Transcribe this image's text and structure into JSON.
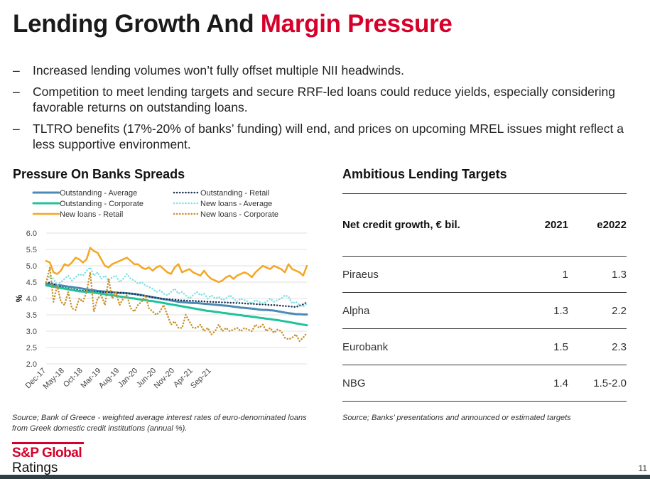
{
  "title": {
    "part1": "Lending Growth And",
    "part2": "Margin Pressure"
  },
  "bullets": [
    {
      "marker": "–",
      "text": "Increased lending volumes won’t fully offset multiple NII headwinds."
    },
    {
      "marker": "–",
      "text": "Competition to meet lending targets and secure RRF-led loans could reduce yields, especially considering favorable returns on outstanding loans."
    },
    {
      "marker": "–",
      "text": "TLTRO benefits (17%-20% of banks’ funding) will end, and prices on upcoming MREL issues might reflect a less supportive environment."
    }
  ],
  "left_section": {
    "title": "Pressure On Banks Spreads",
    "source": "Source; Bank of Greece - weighted average interest rates of euro-denominated loans from Greek domestic credit institutions (annual %)."
  },
  "right_section": {
    "title": "Ambitious Lending Targets",
    "header": [
      "Net credit growth, € bil.",
      "2021",
      "e2022"
    ],
    "rows": [
      {
        "bank": "Piraeus",
        "v2021": "1",
        "v2022": "1.3"
      },
      {
        "bank": "Alpha",
        "v2021": "1.3",
        "v2022": "2.2"
      },
      {
        "bank": "Eurobank",
        "v2021": "1.5",
        "v2022": "2.3"
      },
      {
        "bank": "NBG",
        "v2021": "1.4",
        "v2022": "1.5-2.0"
      }
    ],
    "source": "Source; Banks’ presentations and announced or estimated targets"
  },
  "logo": {
    "top": "S&P Global",
    "bottom": "Ratings"
  },
  "page_number": "11",
  "colors": {
    "accent": "#d6002a",
    "footer": "#2f3e45"
  },
  "chart_data": {
    "type": "line",
    "title": "Pressure On Banks Spreads",
    "xlabel": "",
    "ylabel": "%",
    "ylim": [
      2.0,
      6.0
    ],
    "yticks": [
      "6.0",
      "5.5",
      "5.0",
      "4.5",
      "4.0",
      "3.5",
      "3.0",
      "2.5",
      "2.0"
    ],
    "grid": true,
    "legend_position": "top",
    "x_tick_labels": [
      "Dec-17",
      "May-18",
      "Oct-18",
      "Mar-19",
      "Aug-19",
      "Jan-20",
      "Jun-20",
      "Nov-20",
      "Apr-21",
      "Sep-21"
    ],
    "series": [
      {
        "name": "Outstanding - Average",
        "color": "#4a8ab5",
        "style": "solid",
        "width": 3,
        "values": [
          4.45,
          4.44,
          4.42,
          4.41,
          4.4,
          4.38,
          4.36,
          4.35,
          4.33,
          4.32,
          4.3,
          4.28,
          4.26,
          4.25,
          4.23,
          4.22,
          4.21,
          4.2,
          4.19,
          4.18,
          4.17,
          4.17,
          4.16,
          4.15,
          4.14,
          4.12,
          4.1,
          4.08,
          4.06,
          4.04,
          4.02,
          4.0,
          3.98,
          3.96,
          3.94,
          3.92,
          3.9,
          3.89,
          3.88,
          3.87,
          3.86,
          3.86,
          3.85,
          3.84,
          3.83,
          3.82,
          3.81,
          3.8,
          3.79,
          3.78,
          3.77,
          3.75,
          3.74,
          3.72,
          3.71,
          3.7,
          3.69,
          3.68,
          3.66,
          3.65,
          3.65,
          3.64,
          3.63,
          3.61,
          3.59,
          3.57,
          3.55,
          3.54,
          3.52,
          3.52,
          3.51,
          3.51
        ]
      },
      {
        "name": "Outstanding - Retail",
        "color": "#1c2f4f",
        "style": "dotted",
        "width": 2.5,
        "values": [
          4.5,
          4.48,
          4.45,
          4.4,
          4.35,
          4.32,
          4.3,
          4.28,
          4.27,
          4.25,
          4.24,
          4.23,
          4.22,
          4.21,
          4.2,
          4.2,
          4.19,
          4.19,
          4.19,
          4.18,
          4.18,
          4.17,
          4.16,
          4.15,
          4.14,
          4.12,
          4.1,
          4.08,
          4.06,
          4.04,
          4.02,
          4.0,
          3.99,
          3.98,
          3.97,
          3.96,
          3.95,
          3.94,
          3.94,
          3.93,
          3.93,
          3.92,
          3.92,
          3.91,
          3.9,
          3.9,
          3.89,
          3.89,
          3.88,
          3.88,
          3.87,
          3.87,
          3.86,
          3.86,
          3.85,
          3.84,
          3.84,
          3.83,
          3.82,
          3.82,
          3.81,
          3.8,
          3.8,
          3.79,
          3.78,
          3.77,
          3.76,
          3.75,
          3.74,
          3.78,
          3.82,
          3.88
        ]
      },
      {
        "name": "Outstanding - Corporate",
        "color": "#1fc39a",
        "style": "solid",
        "width": 3,
        "values": [
          4.4,
          4.38,
          4.36,
          4.34,
          4.32,
          4.3,
          4.28,
          4.26,
          4.24,
          4.22,
          4.21,
          4.2,
          4.19,
          4.18,
          4.16,
          4.15,
          4.13,
          4.11,
          4.1,
          4.08,
          4.06,
          4.05,
          4.03,
          4.01,
          4.0,
          3.98,
          3.96,
          3.95,
          3.93,
          3.92,
          3.9,
          3.88,
          3.86,
          3.84,
          3.82,
          3.8,
          3.78,
          3.76,
          3.74,
          3.72,
          3.7,
          3.68,
          3.66,
          3.64,
          3.62,
          3.61,
          3.59,
          3.58,
          3.56,
          3.55,
          3.53,
          3.52,
          3.5,
          3.49,
          3.47,
          3.46,
          3.44,
          3.43,
          3.41,
          3.4,
          3.38,
          3.37,
          3.35,
          3.34,
          3.32,
          3.3,
          3.28,
          3.26,
          3.24,
          3.22,
          3.2,
          3.18
        ]
      },
      {
        "name": "New loans - Average",
        "color": "#7fe0e6",
        "style": "dotted",
        "width": 2.5,
        "values": [
          4.5,
          4.7,
          4.6,
          4.4,
          4.5,
          4.6,
          4.7,
          4.55,
          4.65,
          4.75,
          4.7,
          4.85,
          4.95,
          4.7,
          4.8,
          4.6,
          4.7,
          4.55,
          4.65,
          4.7,
          4.5,
          4.6,
          4.75,
          4.6,
          4.55,
          4.45,
          4.5,
          4.4,
          4.35,
          4.3,
          4.2,
          4.25,
          4.15,
          4.1,
          4.2,
          4.3,
          4.15,
          4.2,
          4.1,
          4.0,
          4.1,
          4.2,
          4.1,
          4.15,
          4.0,
          4.1,
          4.0,
          4.05,
          3.95,
          4.0,
          4.1,
          4.0,
          3.9,
          4.0,
          3.95,
          3.9,
          3.85,
          3.95,
          3.9,
          3.85,
          3.9,
          4.0,
          3.9,
          3.95,
          4.0,
          4.1,
          4.05,
          3.85,
          3.9,
          3.8,
          3.75,
          3.85
        ]
      },
      {
        "name": "New loans - Retail",
        "color": "#f5a623",
        "style": "solid",
        "width": 2.5,
        "values": [
          5.15,
          5.1,
          4.8,
          4.75,
          4.85,
          5.05,
          5.0,
          5.1,
          5.25,
          5.2,
          5.1,
          5.2,
          5.55,
          5.45,
          5.4,
          5.2,
          5.0,
          4.95,
          5.05,
          5.1,
          5.15,
          5.2,
          5.25,
          5.15,
          5.05,
          5.05,
          4.95,
          4.9,
          4.95,
          4.85,
          4.95,
          5.0,
          4.9,
          4.8,
          4.75,
          4.95,
          5.05,
          4.8,
          4.85,
          4.9,
          4.8,
          4.75,
          4.7,
          4.85,
          4.7,
          4.6,
          4.55,
          4.5,
          4.55,
          4.65,
          4.7,
          4.6,
          4.7,
          4.75,
          4.8,
          4.75,
          4.65,
          4.8,
          4.9,
          5.0,
          4.95,
          4.9,
          5.0,
          4.95,
          4.9,
          4.8,
          5.05,
          4.9,
          4.85,
          4.8,
          4.7,
          5.0
        ]
      },
      {
        "name": "New loans - Corporate",
        "color": "#c8902a",
        "style": "dotted",
        "width": 2.5,
        "values": [
          4.5,
          4.95,
          3.9,
          4.4,
          3.9,
          3.8,
          4.2,
          3.7,
          3.65,
          4.0,
          3.9,
          4.2,
          4.8,
          3.6,
          4.0,
          4.1,
          3.8,
          4.6,
          4.0,
          4.2,
          3.8,
          4.0,
          4.1,
          3.7,
          3.6,
          3.8,
          3.9,
          4.1,
          3.7,
          3.6,
          3.5,
          3.6,
          3.8,
          3.5,
          3.2,
          3.3,
          3.1,
          3.1,
          3.5,
          3.3,
          3.1,
          3.1,
          3.2,
          3.0,
          3.1,
          2.9,
          3.0,
          3.2,
          3.0,
          3.1,
          3.0,
          3.05,
          3.1,
          3.0,
          3.1,
          3.05,
          3.0,
          3.2,
          3.1,
          3.2,
          3.0,
          3.1,
          2.95,
          3.05,
          3.0,
          2.8,
          2.75,
          2.8,
          2.9,
          2.7,
          2.8,
          2.95
        ]
      }
    ]
  }
}
